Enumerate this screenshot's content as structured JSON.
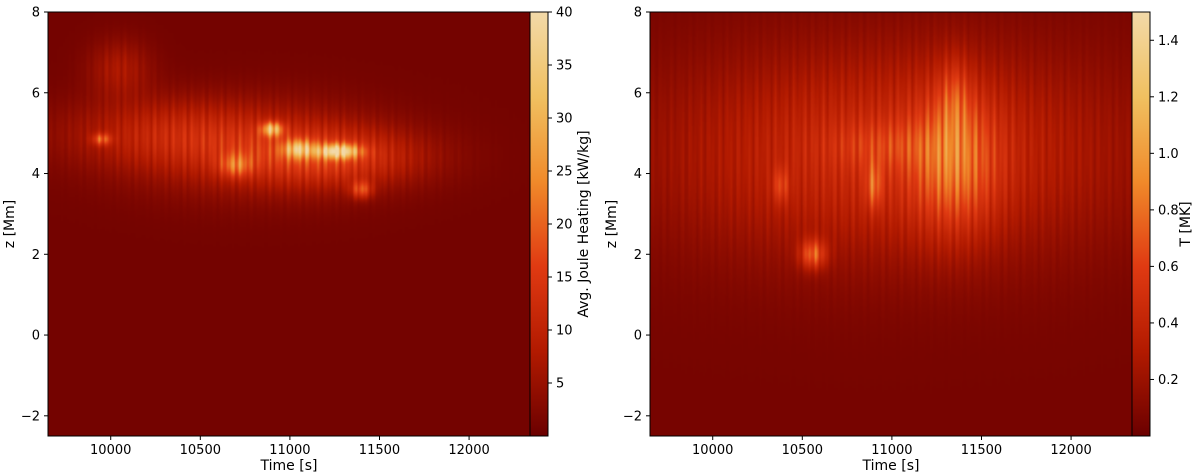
{
  "chart_data": [
    {
      "type": "heatmap",
      "title": "",
      "xlabel": "Time [s]",
      "ylabel": "z [Mm]",
      "colorbar_label": "Avg. Joule Heating [kW/kg]",
      "xlim": [
        9650,
        12340
      ],
      "ylim": [
        -2.5,
        8
      ],
      "clim": [
        0,
        40
      ],
      "xticks": [
        10000,
        10500,
        11000,
        11500,
        12000
      ],
      "yticks": [
        -2,
        0,
        2,
        4,
        6,
        8
      ],
      "cticks": [
        5,
        10,
        15,
        20,
        25,
        30,
        35,
        40
      ],
      "colormap": [
        "#6b0000",
        "#b21a00",
        "#e03a12",
        "#f08a2a",
        "#f0c060",
        "#f2d9a8"
      ],
      "background_value": 1,
      "features": [
        {
          "t": 10300,
          "z": 5.0,
          "st": 420,
          "sz": 0.6,
          "v": 9
        },
        {
          "t": 10800,
          "z": 4.6,
          "st": 500,
          "sz": 0.8,
          "v": 10
        },
        {
          "t": 11250,
          "z": 4.4,
          "st": 350,
          "sz": 0.5,
          "v": 14
        },
        {
          "t": 10050,
          "z": 6.6,
          "st": 120,
          "sz": 0.5,
          "v": 8
        },
        {
          "t": 10900,
          "z": 5.1,
          "st": 40,
          "sz": 0.12,
          "v": 30
        },
        {
          "t": 11050,
          "z": 4.6,
          "st": 60,
          "sz": 0.15,
          "v": 26
        },
        {
          "t": 11270,
          "z": 4.55,
          "st": 80,
          "sz": 0.12,
          "v": 38
        },
        {
          "t": 9950,
          "z": 4.85,
          "st": 35,
          "sz": 0.1,
          "v": 18
        },
        {
          "t": 11400,
          "z": 3.6,
          "st": 40,
          "sz": 0.15,
          "v": 18
        },
        {
          "t": 10700,
          "z": 4.2,
          "st": 60,
          "sz": 0.2,
          "v": 16
        }
      ]
    },
    {
      "type": "heatmap",
      "title": "",
      "xlabel": "Time [s]",
      "ylabel": "z [Mm]",
      "colorbar_label": "T [MK]",
      "xlim": [
        9650,
        12340
      ],
      "ylim": [
        -2.5,
        8
      ],
      "clim": [
        0,
        1.5
      ],
      "xticks": [
        10000,
        10500,
        11000,
        11500,
        12000
      ],
      "yticks": [
        -2,
        0,
        2,
        4,
        6,
        8
      ],
      "cticks": [
        0.2,
        0.4,
        0.6,
        0.8,
        1.0,
        1.2,
        1.4
      ],
      "colormap": [
        "#6b0000",
        "#b21a00",
        "#e03a12",
        "#f08a2a",
        "#f0c060",
        "#f2d9a8"
      ],
      "background_value": 0.05,
      "features": [
        {
          "t": 11000,
          "z": 4.5,
          "st": 900,
          "sz": 1.8,
          "v": 0.55
        },
        {
          "t": 11350,
          "z": 4.3,
          "st": 160,
          "sz": 1.2,
          "v": 0.6
        },
        {
          "t": 11350,
          "z": 5.9,
          "st": 60,
          "sz": 0.7,
          "v": 0.3
        },
        {
          "t": 10950,
          "z": 4.7,
          "st": 200,
          "sz": 0.4,
          "v": 0.2
        },
        {
          "t": 10900,
          "z": 3.7,
          "st": 30,
          "sz": 0.4,
          "v": 0.5
        },
        {
          "t": 10560,
          "z": 2.0,
          "st": 50,
          "sz": 0.25,
          "v": 0.75
        },
        {
          "t": 10380,
          "z": 3.7,
          "st": 30,
          "sz": 0.3,
          "v": 0.4
        }
      ]
    }
  ]
}
